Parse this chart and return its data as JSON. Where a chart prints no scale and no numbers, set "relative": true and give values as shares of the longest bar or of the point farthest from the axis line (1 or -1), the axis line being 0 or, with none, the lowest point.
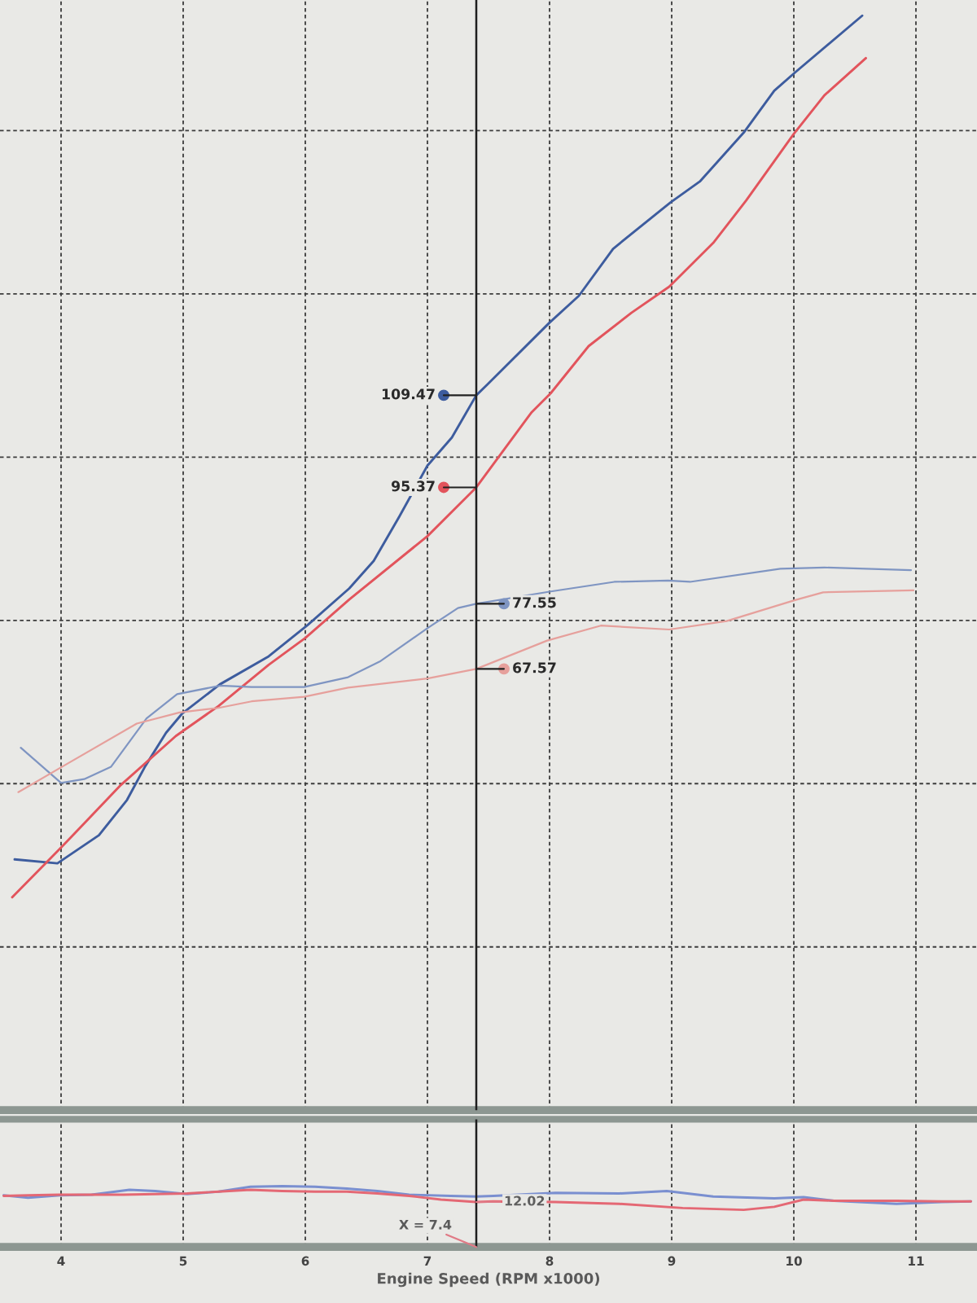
{
  "chart_data": [
    {
      "type": "line",
      "xlim": [
        3.5,
        11.5
      ],
      "xticks": [
        4,
        5,
        6,
        7,
        8,
        9,
        10,
        11
      ],
      "ylim": [
        0,
        170
      ],
      "yticks": [
        {
          "value": 25,
          "label": null
        },
        {
          "value": 50,
          "label": null
        },
        {
          "value": 75,
          "label": null
        },
        {
          "value": 100,
          "label": null
        },
        {
          "value": 125,
          "label": null
        },
        {
          "value": 150,
          "label": null
        }
      ],
      "tick_labels": false,
      "grid": true,
      "ref_lines": [
        {
          "axis": "x",
          "value": 7.4,
          "color": "#1e1e1e"
        }
      ],
      "series": [
        {
          "color": "#3d5c9e",
          "x": [
            3.62,
            3.97,
            4.31,
            4.54,
            4.69,
            4.86,
            4.99,
            5.3,
            5.7,
            6.02,
            6.36,
            6.56,
            6.77,
            7.0,
            7.2,
            7.4,
            7.49,
            8.0,
            8.24,
            8.52,
            8.99,
            9.23,
            9.59,
            9.84,
            10.01,
            10.56
          ],
          "values": [
            38.4,
            37.8,
            42.1,
            47.5,
            52.7,
            57.8,
            60.7,
            65.2,
            69.5,
            74.3,
            79.9,
            84.1,
            90.9,
            98.7,
            103.0,
            109.47,
            111.1,
            120.6,
            124.7,
            131.9,
            139.0,
            142.2,
            149.7,
            156.1,
            158.9,
            167.6
          ],
          "value_labels": [
            null,
            null,
            null,
            null,
            null,
            null,
            null,
            null,
            null,
            null,
            null,
            null,
            null,
            null,
            null,
            "109.47",
            null,
            null,
            null,
            null,
            null,
            null,
            null,
            null,
            null,
            null
          ]
        },
        {
          "color": "#e2545c",
          "x": [
            3.6,
            4.0,
            4.49,
            4.94,
            5.29,
            5.7,
            6.0,
            6.36,
            7.0,
            7.4,
            7.85,
            8.01,
            8.32,
            8.67,
            8.98,
            9.34,
            9.61,
            10.0,
            10.25,
            10.59
          ],
          "values": [
            32.6,
            40.2,
            49.8,
            57.3,
            61.9,
            68.2,
            72.3,
            78.2,
            87.9,
            95.37,
            106.8,
            109.8,
            117.0,
            122.1,
            126.1,
            132.8,
            139.3,
            149.5,
            155.4,
            161.1
          ],
          "value_labels": [
            null,
            null,
            null,
            null,
            null,
            null,
            null,
            null,
            null,
            "95.37",
            null,
            null,
            null,
            null,
            null,
            null,
            null,
            null,
            null,
            null
          ]
        },
        {
          "color": "#7f95c2",
          "x": [
            3.67,
            4.0,
            4.19,
            4.41,
            4.7,
            4.95,
            5.3,
            5.56,
            5.99,
            6.35,
            6.61,
            7.0,
            7.25,
            7.4,
            8.0,
            8.53,
            8.97,
            9.15,
            9.89,
            10.25,
            10.96
          ],
          "values": [
            55.5,
            50.1,
            50.7,
            52.6,
            60.0,
            63.7,
            65.0,
            64.8,
            64.8,
            66.3,
            68.7,
            73.8,
            76.9,
            77.55,
            79.4,
            80.9,
            81.1,
            80.9,
            82.9,
            83.1,
            82.7
          ],
          "value_labels": [
            null,
            null,
            null,
            null,
            null,
            null,
            null,
            null,
            null,
            null,
            null,
            null,
            null,
            "77.55",
            null,
            null,
            null,
            null,
            null,
            null,
            null
          ]
        },
        {
          "color": "#e6a09c",
          "x": [
            3.65,
            4.01,
            4.62,
            4.97,
            5.29,
            5.56,
            5.99,
            6.35,
            7.0,
            7.4,
            7.98,
            8.42,
            8.98,
            9.45,
            10.01,
            10.24,
            10.98
          ],
          "values": [
            48.7,
            52.6,
            59.2,
            60.9,
            61.6,
            62.6,
            63.3,
            64.7,
            66.1,
            67.57,
            71.9,
            74.2,
            73.6,
            74.9,
            78.1,
            79.3,
            79.6
          ],
          "value_labels": [
            null,
            null,
            null,
            null,
            null,
            null,
            null,
            null,
            null,
            "67.57",
            null,
            null,
            null,
            null,
            null,
            null,
            null
          ]
        }
      ]
    },
    {
      "type": "line",
      "relative": true,
      "xlim": [
        3.5,
        11.5
      ],
      "xticks": [
        4,
        5,
        6,
        7,
        8,
        9,
        10,
        11
      ],
      "xlabel": "Engine Speed (RPM x1000)",
      "tick_labels": "x",
      "grid": "x",
      "ref_lines": [
        {
          "axis": "x",
          "value": 7.4,
          "label": "X = 7.4",
          "color": "#1e1e1e"
        }
      ],
      "annotations": [
        {
          "text": "12.02",
          "x": 7.4,
          "y": 0.74
        }
      ],
      "series": [
        {
          "color": "#7a8fd0",
          "x": [
            3.53,
            3.73,
            3.99,
            4.25,
            4.56,
            4.77,
            5.03,
            5.29,
            5.55,
            5.81,
            6.08,
            6.34,
            6.59,
            6.85,
            7.19,
            7.4,
            7.54,
            8.05,
            8.57,
            8.96,
            9.34,
            9.84,
            10.08,
            10.33,
            10.84,
            11.21,
            11.45
          ],
          "values": [
            0.85,
            0.81,
            0.85,
            0.86,
            0.94,
            0.92,
            0.87,
            0.91,
            0.99,
            1.0,
            0.99,
            0.96,
            0.92,
            0.86,
            0.84,
            0.83,
            0.84,
            0.89,
            0.88,
            0.92,
            0.83,
            0.8,
            0.82,
            0.76,
            0.71,
            0.74,
            0.75
          ]
        },
        {
          "color": "#e46874",
          "x": [
            3.53,
            3.73,
            3.99,
            4.25,
            4.51,
            4.77,
            5.03,
            5.29,
            5.55,
            5.81,
            6.08,
            6.34,
            6.59,
            6.85,
            7.11,
            7.4,
            7.54,
            8.05,
            8.57,
            9.09,
            9.59,
            9.84,
            10.08,
            10.33,
            10.84,
            11.21,
            11.45
          ],
          "values": [
            0.84,
            0.85,
            0.86,
            0.86,
            0.86,
            0.87,
            0.88,
            0.91,
            0.94,
            0.92,
            0.91,
            0.91,
            0.88,
            0.84,
            0.78,
            0.74,
            0.75,
            0.74,
            0.71,
            0.64,
            0.61,
            0.66,
            0.78,
            0.76,
            0.76,
            0.75,
            0.75
          ]
        }
      ]
    }
  ]
}
